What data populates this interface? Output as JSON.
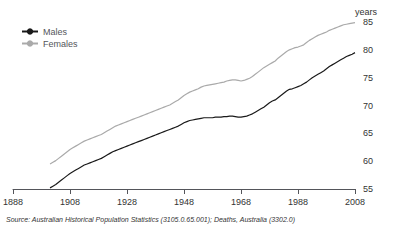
{
  "chart_data": {
    "type": "line",
    "ylabel": "years",
    "annotations": [
      "Source: Australian Historical Population Statistics (3105.0.65.001); Deaths, Australia (3302.0)"
    ],
    "x": [
      1901,
      1902,
      1903,
      1904,
      1905,
      1906,
      1907,
      1908,
      1909,
      1910,
      1911,
      1912,
      1913,
      1914,
      1915,
      1916,
      1917,
      1918,
      1919,
      1920,
      1921,
      1922,
      1923,
      1924,
      1925,
      1926,
      1927,
      1928,
      1929,
      1930,
      1931,
      1932,
      1933,
      1934,
      1935,
      1936,
      1937,
      1938,
      1939,
      1940,
      1941,
      1942,
      1943,
      1944,
      1945,
      1946,
      1947,
      1948,
      1949,
      1950,
      1951,
      1952,
      1953,
      1954,
      1955,
      1956,
      1957,
      1958,
      1959,
      1960,
      1961,
      1962,
      1963,
      1964,
      1965,
      1966,
      1967,
      1968,
      1969,
      1970,
      1971,
      1972,
      1973,
      1974,
      1975,
      1976,
      1977,
      1978,
      1979,
      1980,
      1981,
      1982,
      1983,
      1984,
      1985,
      1986,
      1987,
      1988,
      1989,
      1990,
      1991,
      1992,
      1993,
      1994,
      1995,
      1996,
      1997,
      1998,
      1999,
      2000,
      2001,
      2002,
      2003,
      2004,
      2005,
      2006,
      2007,
      2008
    ],
    "series": [
      {
        "name": "Males",
        "color": "#1a1a1a",
        "values": [
          55.2,
          55.5,
          55.8,
          56.2,
          56.6,
          57.0,
          57.4,
          57.8,
          58.1,
          58.4,
          58.7,
          59.0,
          59.3,
          59.5,
          59.7,
          59.9,
          60.1,
          60.3,
          60.5,
          60.8,
          61.1,
          61.4,
          61.7,
          61.9,
          62.1,
          62.3,
          62.5,
          62.7,
          62.9,
          63.1,
          63.3,
          63.5,
          63.7,
          63.9,
          64.1,
          64.3,
          64.5,
          64.7,
          64.9,
          65.1,
          65.3,
          65.5,
          65.7,
          65.9,
          66.1,
          66.3,
          66.6,
          66.9,
          67.1,
          67.3,
          67.4,
          67.5,
          67.6,
          67.7,
          67.8,
          67.8,
          67.8,
          67.8,
          67.9,
          67.9,
          67.9,
          68.0,
          68.0,
          68.1,
          68.1,
          68.0,
          67.9,
          67.9,
          68.0,
          68.1,
          68.3,
          68.5,
          68.8,
          69.1,
          69.4,
          69.7,
          70.1,
          70.5,
          70.8,
          71.0,
          71.4,
          71.8,
          72.2,
          72.6,
          72.9,
          73.0,
          73.2,
          73.4,
          73.6,
          73.9,
          74.2,
          74.6,
          75.0,
          75.3,
          75.6,
          75.9,
          76.2,
          76.6,
          77.0,
          77.3,
          77.6,
          77.9,
          78.2,
          78.5,
          78.8,
          79.0,
          79.2,
          79.5
        ]
      },
      {
        "name": "Females",
        "color": "#aaaaaa",
        "values": [
          59.5,
          59.8,
          60.1,
          60.5,
          60.9,
          61.3,
          61.7,
          62.1,
          62.4,
          62.7,
          63.0,
          63.3,
          63.6,
          63.8,
          64.0,
          64.2,
          64.4,
          64.6,
          64.8,
          65.1,
          65.4,
          65.7,
          66.0,
          66.3,
          66.5,
          66.7,
          66.9,
          67.1,
          67.3,
          67.5,
          67.7,
          67.9,
          68.1,
          68.3,
          68.5,
          68.7,
          68.9,
          69.1,
          69.3,
          69.5,
          69.7,
          69.9,
          70.1,
          70.4,
          70.7,
          71.0,
          71.4,
          71.8,
          72.1,
          72.4,
          72.6,
          72.8,
          73.0,
          73.3,
          73.5,
          73.6,
          73.7,
          73.8,
          73.9,
          74.0,
          74.1,
          74.2,
          74.4,
          74.5,
          74.6,
          74.6,
          74.5,
          74.4,
          74.5,
          74.7,
          74.9,
          75.2,
          75.6,
          76.0,
          76.4,
          76.8,
          77.1,
          77.4,
          77.7,
          78.0,
          78.5,
          78.9,
          79.3,
          79.7,
          80.0,
          80.2,
          80.4,
          80.5,
          80.7,
          80.9,
          81.3,
          81.7,
          82.0,
          82.3,
          82.6,
          82.8,
          83.0,
          83.2,
          83.5,
          83.7,
          83.9,
          84.1,
          84.3,
          84.5,
          84.6,
          84.7,
          84.8,
          84.9
        ]
      }
    ],
    "xlim": [
      1888,
      2008
    ],
    "xticks": [
      1888,
      1908,
      1928,
      1948,
      1968,
      1988,
      2008
    ],
    "ylim": [
      55,
      85
    ],
    "yticks": [
      55,
      60,
      65,
      70,
      75,
      80,
      85
    ],
    "grid": false,
    "legend": "upper left"
  }
}
